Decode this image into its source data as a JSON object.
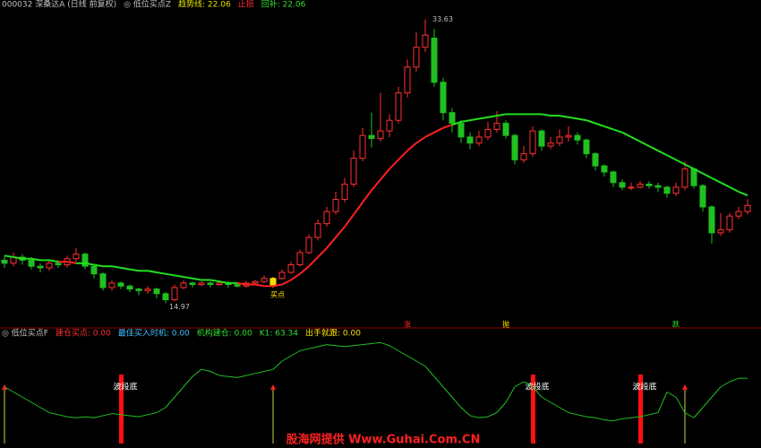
{
  "chart_data": {
    "type": "candlestick",
    "header": [
      {
        "text": "000032 深桑达A (日线 前复权)",
        "color": "#c0c0c0"
      },
      {
        "text": "◎ 低位买点Z",
        "color": "#c0c0c0"
      },
      {
        "text": "趋势线: 22.06",
        "color": "#e0e000"
      },
      {
        "text": "止损",
        "color": "#ff3030"
      },
      {
        "text": "回补: 22.06",
        "color": "#30e030"
      }
    ],
    "ylim": [
      13.7,
      34.2
    ],
    "up_color": "#ff3030",
    "down_color": "#20c020",
    "open": [
      17.8,
      17.6,
      18.0,
      17.8,
      17.4,
      17.3,
      17.6,
      17.5,
      17.9,
      18.2,
      17.4,
      16.9,
      16.0,
      16.3,
      16.1,
      15.9,
      15.8,
      15.9,
      15.6,
      15.2,
      16.0,
      16.3,
      16.2,
      16.3,
      16.2,
      16.3,
      16.2,
      16.1,
      16.3,
      16.4,
      16.1,
      16.6,
      17.0,
      17.5,
      18.3,
      19.3,
      20.2,
      21.0,
      21.8,
      22.8,
      24.5,
      26.0,
      25.8,
      26.3,
      27.0,
      28.8,
      30.5,
      31.8,
      32.4,
      29.5,
      27.5,
      26.8,
      25.9,
      25.5,
      25.9,
      26.4,
      26.8,
      26.0,
      24.4,
      24.8,
      26.3,
      25.3,
      25.5,
      25.9,
      26.0,
      25.7,
      24.8,
      24.0,
      23.6,
      22.9,
      22.6,
      22.6,
      22.8,
      22.7,
      22.6,
      22.2,
      22.6,
      23.8,
      22.7,
      21.3,
      19.6,
      19.8,
      20.7,
      21.0
    ],
    "high": [
      18.1,
      18.3,
      18.2,
      18.0,
      17.6,
      17.8,
      17.8,
      18.1,
      18.6,
      18.3,
      17.5,
      17.0,
      16.5,
      16.4,
      16.2,
      16.0,
      16.1,
      16.0,
      15.7,
      16.2,
      16.5,
      16.4,
      16.4,
      16.4,
      16.4,
      16.4,
      16.3,
      16.4,
      16.5,
      16.8,
      16.7,
      17.2,
      17.7,
      18.5,
      19.5,
      20.5,
      21.3,
      22.3,
      23.2,
      25.0,
      26.5,
      27.5,
      28.8,
      27.4,
      29.2,
      31.0,
      32.8,
      33.63,
      33.0,
      29.8,
      27.8,
      27.0,
      26.2,
      26.3,
      26.9,
      27.6,
      27.0,
      26.1,
      25.3,
      26.6,
      26.4,
      25.9,
      26.4,
      26.6,
      26.2,
      25.8,
      24.9,
      24.1,
      23.7,
      23.1,
      22.9,
      23.0,
      23.0,
      22.9,
      22.7,
      22.9,
      24.3,
      23.9,
      22.8,
      21.4,
      20.9,
      20.9,
      21.3,
      21.8
    ],
    "low": [
      17.3,
      17.4,
      17.5,
      17.2,
      17.0,
      17.1,
      17.3,
      17.3,
      17.7,
      17.2,
      16.6,
      15.8,
      15.8,
      15.9,
      15.7,
      15.5,
      15.6,
      15.3,
      14.97,
      15.1,
      15.9,
      16.0,
      16.1,
      16.0,
      16.1,
      16.0,
      16.0,
      16.0,
      16.2,
      16.3,
      16.0,
      16.5,
      16.9,
      17.4,
      18.2,
      19.1,
      20.0,
      20.8,
      21.6,
      22.6,
      24.3,
      25.2,
      25.6,
      25.9,
      26.8,
      28.5,
      30.2,
      31.5,
      29.2,
      27.0,
      26.2,
      25.5,
      25.1,
      25.3,
      25.7,
      26.2,
      25.8,
      24.1,
      24.2,
      24.6,
      25.0,
      25.1,
      25.3,
      25.6,
      25.4,
      24.5,
      23.7,
      23.3,
      22.6,
      22.4,
      22.4,
      22.5,
      22.5,
      22.3,
      21.9,
      22.0,
      22.4,
      22.5,
      21.0,
      18.9,
      19.4,
      19.6,
      20.5,
      20.8
    ],
    "close": [
      17.6,
      18.0,
      17.8,
      17.4,
      17.3,
      17.6,
      17.5,
      17.9,
      18.2,
      17.4,
      16.9,
      16.0,
      16.3,
      16.1,
      15.9,
      15.8,
      15.9,
      15.6,
      15.2,
      16.0,
      16.3,
      16.2,
      16.3,
      16.2,
      16.3,
      16.2,
      16.1,
      16.3,
      16.4,
      16.6,
      16.6,
      17.0,
      17.5,
      18.3,
      19.3,
      20.2,
      21.0,
      21.8,
      22.8,
      24.5,
      26.0,
      25.8,
      26.3,
      27.0,
      28.8,
      30.5,
      31.8,
      32.6,
      29.5,
      27.5,
      26.8,
      25.9,
      25.5,
      25.9,
      26.4,
      26.8,
      26.0,
      24.4,
      24.8,
      26.3,
      25.3,
      25.5,
      25.9,
      26.0,
      25.7,
      24.8,
      24.0,
      23.6,
      22.9,
      22.6,
      22.6,
      22.8,
      22.7,
      22.6,
      22.2,
      22.6,
      23.8,
      22.7,
      21.3,
      19.6,
      19.8,
      20.7,
      21.0,
      21.4
    ],
    "trend": {
      "name": "趋势线",
      "color": "#20e020",
      "below_color": "#ff2020",
      "values": [
        18.1,
        18.0,
        17.9,
        17.9,
        17.8,
        17.8,
        17.7,
        17.7,
        17.6,
        17.6,
        17.5,
        17.4,
        17.4,
        17.3,
        17.2,
        17.1,
        17.1,
        17.0,
        16.9,
        16.8,
        16.7,
        16.6,
        16.5,
        16.5,
        16.4,
        16.3,
        16.3,
        16.2,
        16.2,
        16.1,
        16.1,
        16.2,
        16.5,
        16.9,
        17.4,
        18.0,
        18.6,
        19.3,
        20.0,
        20.8,
        21.6,
        22.4,
        23.1,
        23.8,
        24.4,
        25.0,
        25.5,
        25.9,
        26.2,
        26.5,
        26.7,
        26.9,
        27.0,
        27.1,
        27.2,
        27.3,
        27.4,
        27.4,
        27.4,
        27.4,
        27.4,
        27.3,
        27.3,
        27.2,
        27.1,
        27.0,
        26.8,
        26.6,
        26.4,
        26.2,
        25.9,
        25.6,
        25.3,
        25.0,
        24.7,
        24.4,
        24.1,
        23.8,
        23.5,
        23.2,
        22.9,
        22.6,
        22.3,
        22.06
      ]
    },
    "buy_point": {
      "text": "买点",
      "at": 30,
      "color": "#ffe000"
    },
    "price_markers": [
      {
        "text": "涨",
        "at": 45,
        "color": "#ff3030"
      },
      {
        "text": "抛",
        "at": 56,
        "color": "#ffe000"
      },
      {
        "text": "跌",
        "at": 75,
        "color": "#30e030"
      }
    ],
    "lower": {
      "header": [
        {
          "text": "◎ 低位买点F",
          "color": "#c0c0c0"
        },
        {
          "text": "建仓买点: 0.00",
          "color": "#ff3030"
        },
        {
          "text": "最佳买入时机: 0.00",
          "color": "#40c0ff"
        },
        {
          "text": "机构建仓: 0.00",
          "color": "#30e030"
        },
        {
          "text": "K1: 63.34",
          "color": "#30e030"
        },
        {
          "text": "出手就跟: 0.00",
          "color": "#ffe000"
        }
      ],
      "ylim": [
        0,
        100
      ],
      "k1": {
        "name": "K1",
        "color": "#20c020",
        "values": [
          55,
          50,
          45,
          40,
          35,
          30,
          28,
          26,
          25,
          26,
          25,
          27,
          29,
          28,
          27,
          26,
          28,
          30,
          35,
          45,
          55,
          65,
          72,
          70,
          66,
          65,
          64,
          66,
          68,
          70,
          72,
          80,
          85,
          90,
          92,
          94,
          96,
          95,
          94,
          95,
          96,
          97,
          98,
          95,
          90,
          85,
          80,
          75,
          65,
          55,
          45,
          35,
          27,
          25,
          26,
          30,
          40,
          55,
          60,
          55,
          45,
          40,
          35,
          30,
          28,
          26,
          25,
          23,
          22,
          24,
          25,
          26,
          28,
          30,
          50,
          45,
          30,
          25,
          35,
          45,
          55,
          60,
          63.34,
          63.34
        ]
      },
      "bottom_signals": {
        "text": "波段底",
        "at": [
          13,
          59,
          71
        ],
        "color": "#ff1010"
      },
      "buy_lines": {
        "at": [
          0,
          30,
          76
        ],
        "color": "#d0d040"
      }
    },
    "watermark": "股海网提供 Www.Guhai.Com.CN"
  }
}
